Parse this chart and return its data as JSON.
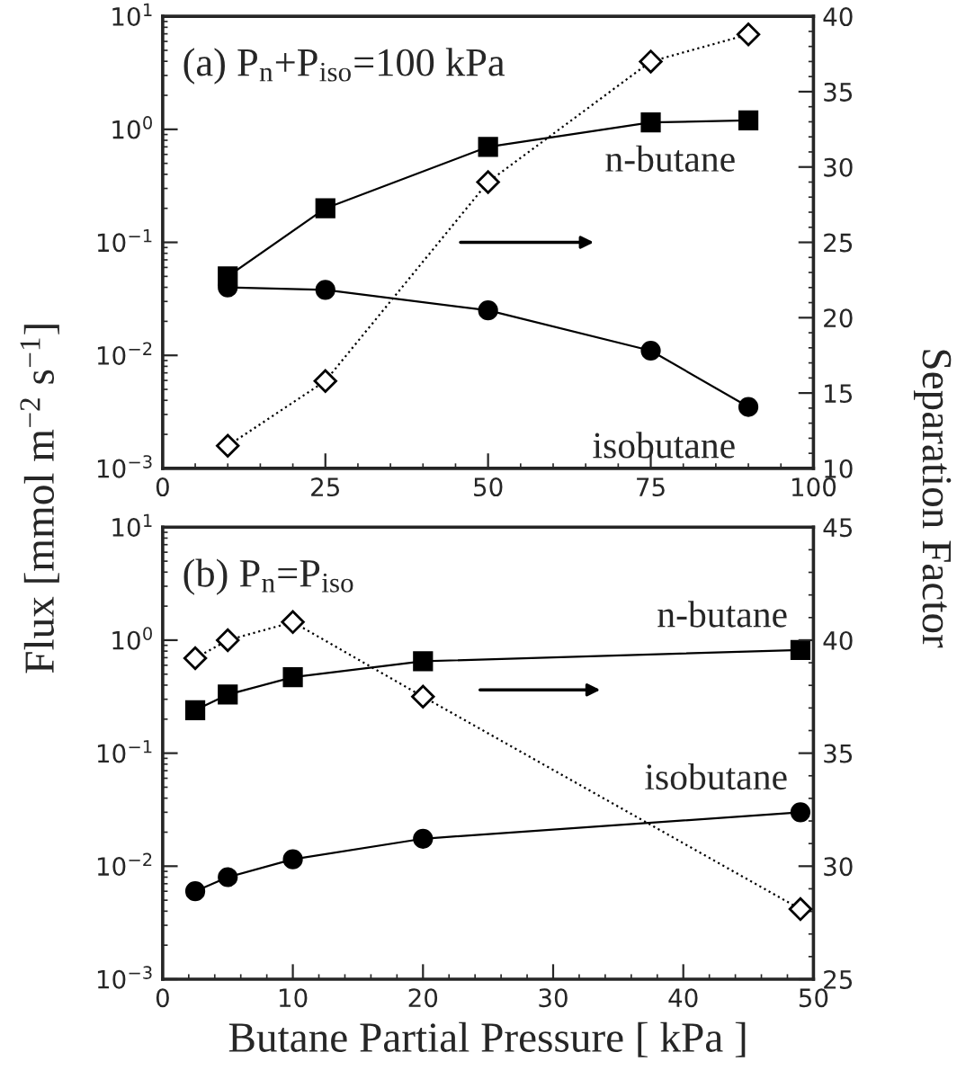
{
  "chart_data": [
    {
      "type": "line",
      "x": [
        10,
        25,
        50,
        75,
        90
      ],
      "ylabel": "Flux [mmol m$^{−2}$ s$^{−1}$]",
      "y2label": "Separation Factor",
      "log": "y",
      "legend": false,
      "annotations": [
        "(a) P$_{n}$+P$_{iso}$=100 kPa"
      ],
      "xlim": [
        0,
        100
      ],
      "xticks": [
        0,
        25,
        50,
        75,
        100
      ],
      "ylim": [
        0.001,
        10
      ],
      "yticks": [
        {
          "value": 0.001,
          "label": "10$^{−3}$"
        },
        {
          "value": 0.01,
          "label": "10$^{−2}$"
        },
        {
          "value": 0.1,
          "label": "10$^{−1}$"
        },
        {
          "value": 1,
          "label": "10$^{0}$"
        },
        {
          "value": 10,
          "label": "10$^{1}$"
        }
      ],
      "y2lim": [
        10,
        40
      ],
      "y2ticks": [
        10,
        15,
        20,
        25,
        30,
        35,
        40
      ],
      "series": [
        {
          "name": "n-butane",
          "color": "#000000",
          "marker": "square",
          "line_style": "solid",
          "values": [
            0.05,
            0.2,
            0.7,
            1.15,
            1.2
          ]
        },
        {
          "name": "isobutane",
          "color": "#000000",
          "marker": "circle",
          "line_style": "solid",
          "values": [
            0.04,
            0.038,
            0.025,
            0.011,
            0.0035
          ]
        },
        {
          "color": "#000000",
          "marker": "diamond",
          "line_style": "dotted",
          "axis": "y2",
          "values": [
            11.5,
            15.8,
            29,
            37,
            38.8
          ]
        }
      ]
    },
    {
      "type": "line",
      "x": [
        2.5,
        5,
        10,
        20,
        49
      ],
      "xlabel": "Butane Partial Pressure [ kPa ]",
      "log": "y",
      "legend": false,
      "annotations": [
        "(b) P$_{n}$=P$_{iso}$"
      ],
      "xlim": [
        0,
        50
      ],
      "xticks": [
        0,
        10,
        20,
        30,
        40,
        50
      ],
      "ylim": [
        0.001,
        10
      ],
      "yticks": [
        {
          "value": 0.001,
          "label": "10$^{−3}$"
        },
        {
          "value": 0.01,
          "label": "10$^{−2}$"
        },
        {
          "value": 0.1,
          "label": "10$^{−1}$"
        },
        {
          "value": 1,
          "label": "10$^{0}$"
        },
        {
          "value": 10,
          "label": "10$^{1}$"
        }
      ],
      "y2lim": [
        25,
        45
      ],
      "y2ticks": [
        25,
        30,
        35,
        40,
        45
      ],
      "series": [
        {
          "name": "n-butane",
          "color": "#000000",
          "marker": "square",
          "line_style": "solid",
          "values": [
            0.24,
            0.33,
            0.47,
            0.65,
            0.82
          ]
        },
        {
          "name": "isobutane",
          "color": "#000000",
          "marker": "circle",
          "line_style": "solid",
          "values": [
            0.006,
            0.008,
            0.0115,
            0.0175,
            0.03
          ]
        },
        {
          "color": "#000000",
          "marker": "diamond",
          "line_style": "dotted",
          "axis": "y2",
          "values": [
            39.2,
            40.0,
            40.8,
            37.5,
            28.1
          ]
        }
      ]
    }
  ]
}
